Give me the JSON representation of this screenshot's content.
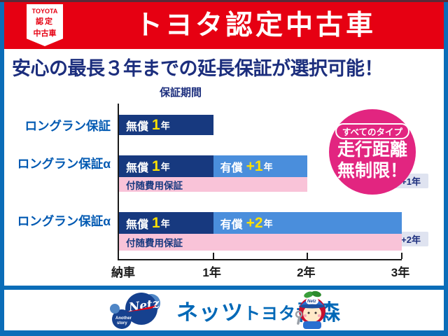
{
  "colors": {
    "red": "#e60012",
    "maroon": "#5a2a38",
    "frame_blue": "#0b6db8",
    "heading_navy": "#1c2e7d",
    "label_blue": "#0059b2",
    "bar_navy": "#17397f",
    "bar_light_blue": "#4a8edc",
    "bar_pink": "#f9c3d8",
    "yellow": "#ffe100",
    "badge_pink": "#e22580",
    "pill_bg": "#dfe3f0",
    "footer_blue": "#0068b7",
    "logo_navy": "#16418f",
    "logo_light_blue": "#4f86c6",
    "axis_black": "#1a1a1a"
  },
  "header": {
    "badge_line1": "TOYOTA",
    "badge_line2": "認定",
    "badge_line3": "中古車",
    "title": "トヨタ認定中古車"
  },
  "heading": "安心の最長３年までの延長保証が選択可能！",
  "chart_data": {
    "type": "bar",
    "orientation": "horizontal-timeline",
    "title": "保証期間",
    "xlim": [
      0,
      3
    ],
    "x_unit": "年",
    "x_ticks": [
      {
        "value": 0,
        "label": "納車"
      },
      {
        "value": 1,
        "label": "1年"
      },
      {
        "value": 2,
        "label": "2年"
      },
      {
        "value": 3,
        "label": "3年"
      }
    ],
    "series": [
      {
        "name": "ロングラン保証",
        "sub": "",
        "segments": [
          {
            "kind": "free",
            "prefix": "無償",
            "num": "1",
            "unit": "年",
            "start": 0,
            "end": 1
          }
        ]
      },
      {
        "name": "ロングラン保証α",
        "sub": "+1年",
        "segments": [
          {
            "kind": "free",
            "prefix": "無償",
            "num": "1",
            "unit": "年",
            "start": 0,
            "end": 1
          },
          {
            "kind": "paid",
            "prefix": "有償",
            "num": "+1",
            "unit": "年",
            "start": 1,
            "end": 2
          }
        ],
        "cost_bar": {
          "label": "付随費用保証",
          "start": 0,
          "end": 2
        }
      },
      {
        "name": "ロングラン保証α",
        "sub": "+2年",
        "segments": [
          {
            "kind": "free",
            "prefix": "無償",
            "num": "1",
            "unit": "年",
            "start": 0,
            "end": 1
          },
          {
            "kind": "paid",
            "prefix": "有償",
            "num": "+2",
            "unit": "年",
            "start": 1,
            "end": 3
          }
        ],
        "cost_bar": {
          "label": "付随費用保証",
          "start": 0,
          "end": 3
        }
      }
    ]
  },
  "badge": {
    "pill": "すべてのタイプ",
    "line1": "走行距離",
    "line2": "無制限！"
  },
  "footer": {
    "logo_main": "Netz",
    "logo_sub1": "Another",
    "logo_sub2": "story",
    "mascot_cap_label": "Netz",
    "dealer_part1": "ネッツ",
    "dealer_part2": "トヨタ",
    "dealer_part3": "青森"
  }
}
